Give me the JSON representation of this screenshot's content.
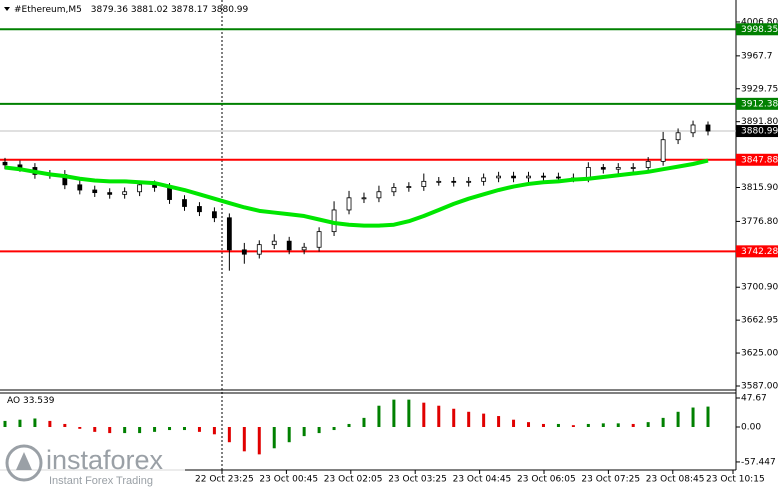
{
  "header": {
    "symbol": "#Ethereum,M5",
    "ohlc": [
      3879.36,
      3881.02,
      3878.17,
      3880.99
    ]
  },
  "logo": {
    "name": "instaforex",
    "tagline": "Instant Forex Trading"
  },
  "chart_data": [
    {
      "type": "candlestick",
      "time_labels": [
        "22 Oct 23:25",
        "23 Oct 00:45",
        "23 Oct 02:05",
        "23 Oct 03:25",
        "23 Oct 04:45",
        "23 Oct 06:05",
        "23 Oct 07:25",
        "23 Oct 08:45",
        "23 Oct 10:15"
      ],
      "open": [
        3845,
        3842,
        3839,
        3831,
        3831,
        3819,
        3813,
        3810,
        3808,
        3811,
        3819,
        3816,
        3802,
        3794,
        3788,
        3781,
        3744,
        3739,
        3750,
        3754,
        3744,
        3747,
        3765,
        3790,
        3804,
        3804,
        3811,
        3816,
        3817,
        3823,
        3823,
        3822,
        3823,
        3827,
        3829,
        3827,
        3829,
        3828,
        3827,
        3827,
        3839,
        3837,
        3839,
        3839,
        3846,
        3871,
        3879,
        3888
      ],
      "high": [
        3850,
        3847,
        3844,
        3836,
        3836,
        3824,
        3818,
        3815,
        3816,
        3824,
        3824,
        3821,
        3807,
        3799,
        3793,
        3786,
        3752,
        3755,
        3762,
        3759,
        3752,
        3770,
        3800,
        3812,
        3810,
        3818,
        3821,
        3822,
        3832,
        3828,
        3828,
        3828,
        3832,
        3834,
        3834,
        3834,
        3833,
        3833,
        3832,
        3845,
        3843,
        3844,
        3844,
        3851,
        3880,
        3884,
        3893,
        3892
      ],
      "low": [
        3837,
        3834,
        3826,
        3826,
        3814,
        3808,
        3805,
        3803,
        3803,
        3806,
        3811,
        3797,
        3789,
        3783,
        3776,
        3720,
        3728,
        3734,
        3745,
        3739,
        3739,
        3742,
        3760,
        3785,
        3798,
        3799,
        3806,
        3811,
        3812,
        3818,
        3817,
        3817,
        3818,
        3822,
        3822,
        3822,
        3823,
        3822,
        3822,
        3822,
        3832,
        3832,
        3834,
        3834,
        3841,
        3866,
        3874,
        3876
      ],
      "close": [
        3842,
        3839,
        3831,
        3831,
        3819,
        3813,
        3810,
        3808,
        3811,
        3819,
        3816,
        3802,
        3794,
        3788,
        3781,
        3744,
        3739,
        3750,
        3754,
        3744,
        3747,
        3765,
        3790,
        3804,
        3804,
        3811,
        3816,
        3817,
        3823,
        3823,
        3822,
        3823,
        3827,
        3829,
        3827,
        3829,
        3828,
        3827,
        3827,
        3839,
        3837,
        3839,
        3839,
        3846,
        3871,
        3879,
        3888,
        3881
      ],
      "ma": {
        "color": "#00e600",
        "values": [
          3839,
          3837,
          3834,
          3831,
          3829,
          3826,
          3824,
          3823,
          3823,
          3822,
          3821,
          3817,
          3813,
          3808,
          3803,
          3798,
          3793,
          3789,
          3787,
          3785,
          3783,
          3779,
          3775,
          3773,
          3772,
          3772,
          3773,
          3777,
          3783,
          3790,
          3797,
          3803,
          3808,
          3813,
          3817,
          3820,
          3822,
          3823,
          3825,
          3826,
          3828,
          3830,
          3832,
          3834,
          3837,
          3840,
          3843,
          3847
        ]
      },
      "levels": [
        {
          "value": 3998.35,
          "color": "#008000"
        },
        {
          "value": 3912.38,
          "color": "#008000"
        },
        {
          "value": 3847.88,
          "color": "#ff0000"
        },
        {
          "value": 3742.28,
          "color": "#ff0000"
        }
      ],
      "last": 3880.99,
      "ylim": [
        3582.4,
        4029.8
      ],
      "yticks": [
        {
          "value": 4006.8,
          "label": "4006.80"
        },
        3967.7,
        3929.75,
        {
          "value": 3891.8,
          "label": "3891.80"
        },
        {
          "value": 3815.9,
          "label": "3815.90"
        },
        {
          "value": 3776.8,
          "label": "3776.80"
        },
        {
          "value": 3700.9,
          "label": "3700.90"
        },
        3662.95,
        {
          "value": 3625,
          "label": "3625.00"
        },
        {
          "value": 3587,
          "label": "3587.00"
        }
      ]
    },
    {
      "type": "bar",
      "name": "AO",
      "up_color": "#008000",
      "down_color": "#e00000",
      "values": [
        10,
        12,
        14,
        10,
        5,
        -3,
        -8,
        -10,
        -10,
        -10,
        -8,
        -5,
        -5,
        -8,
        -12,
        -25,
        -40,
        -45,
        -35,
        -25,
        -15,
        -10,
        -5,
        5,
        15,
        35,
        45,
        45,
        40,
        35,
        30,
        25,
        22,
        18,
        12,
        8,
        5,
        5,
        3,
        5,
        6,
        6,
        5,
        8,
        15,
        25,
        32,
        33.539
      ],
      "ylim": [
        -70.7,
        55.9
      ],
      "yticks": [
        47.67,
        {
          "value": 0,
          "label": "0.00"
        },
        -57.447
      ]
    }
  ]
}
